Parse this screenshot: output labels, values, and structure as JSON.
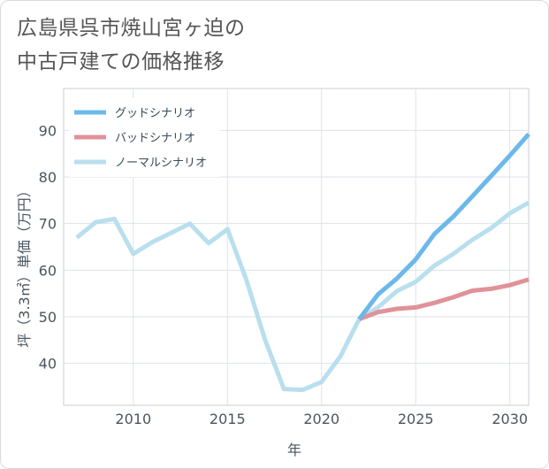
{
  "chart_data": {
    "type": "line",
    "title_lines": [
      "広島県呉市焼山宮ヶ迫の",
      "中古戸建ての価格推移"
    ],
    "xlabel": "年",
    "ylabel": "坪（3.3㎡）単価（万円）",
    "xlim": [
      2006.3,
      2031
    ],
    "ylim": [
      31,
      99
    ],
    "x_ticks": [
      2010,
      2015,
      2020,
      2025,
      2030
    ],
    "y_ticks": [
      40,
      50,
      60,
      70,
      80,
      90
    ],
    "grid": true,
    "legend_position": "top-left",
    "series": [
      {
        "name": "グッドシナリオ",
        "color": "#6cb8ea",
        "x": [
          2022,
          2023,
          2024,
          2025,
          2026,
          2027,
          2028,
          2029,
          2030,
          2031
        ],
        "values": [
          49.5,
          54.8,
          58.2,
          62.3,
          67.8,
          71.5,
          75.8,
          80.2,
          84.6,
          89.2
        ]
      },
      {
        "name": "バッドシナリオ",
        "color": "#e0929a",
        "x": [
          2022,
          2023,
          2024,
          2025,
          2026,
          2027,
          2028,
          2029,
          2030,
          2031
        ],
        "values": [
          49.5,
          51.0,
          51.7,
          52.0,
          53.0,
          54.2,
          55.6,
          56.0,
          56.8,
          58.0
        ]
      },
      {
        "name": "ノーマルシナリオ",
        "color": "#b9dfee",
        "x": [
          2007,
          2008,
          2009,
          2010,
          2011,
          2012,
          2013,
          2014,
          2015,
          2016,
          2017,
          2018,
          2019,
          2020,
          2021,
          2022,
          2023,
          2024,
          2025,
          2026,
          2027,
          2028,
          2029,
          2030,
          2031
        ],
        "values": [
          67.0,
          70.3,
          71.0,
          63.5,
          66.0,
          68.0,
          70.0,
          65.8,
          68.8,
          58.0,
          45.0,
          34.5,
          34.3,
          36.0,
          41.5,
          49.5,
          52.0,
          55.5,
          57.5,
          61.0,
          63.5,
          66.5,
          69.0,
          72.2,
          74.5
        ]
      }
    ]
  }
}
